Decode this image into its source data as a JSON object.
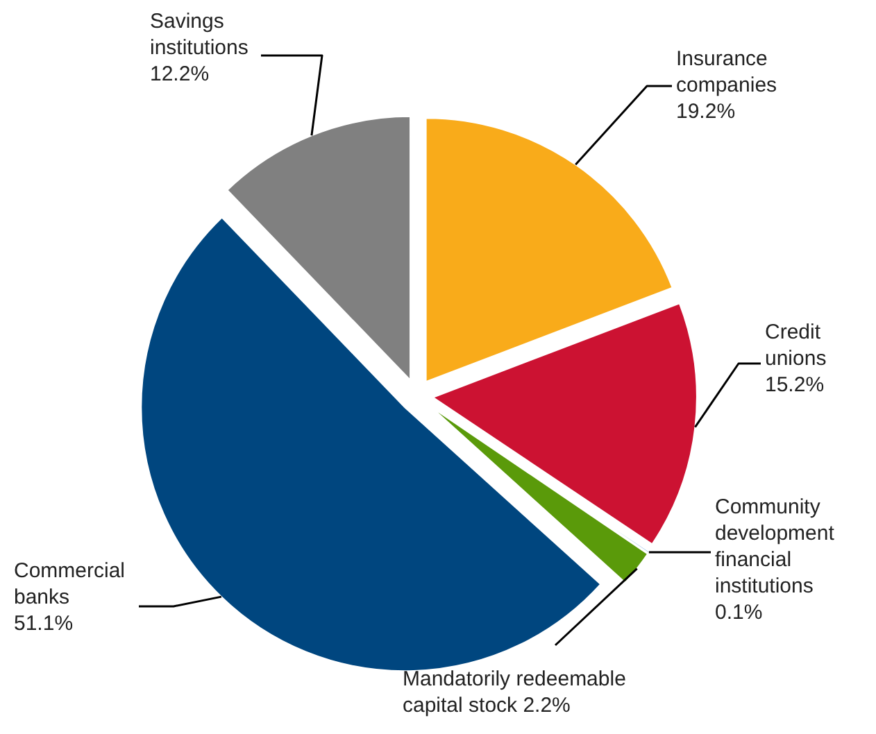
{
  "chart_data": {
    "type": "pie",
    "categories": [
      "Insurance companies",
      "Credit unions",
      "Community development financial institutions",
      "Mandatorily redeemable capital stock",
      "Commercial banks",
      "Savings institutions"
    ],
    "values": [
      19.2,
      15.2,
      0.1,
      2.2,
      51.1,
      12.2
    ],
    "colors": [
      "#f9ab1a",
      "#cc1232",
      "#7fb6e0",
      "#5a9a0a",
      "#00467f",
      "#808080"
    ],
    "value_labels": [
      "19.2%",
      "15.2%",
      "0.1%",
      "2.2%",
      "51.1%",
      "12.2%"
    ]
  }
}
